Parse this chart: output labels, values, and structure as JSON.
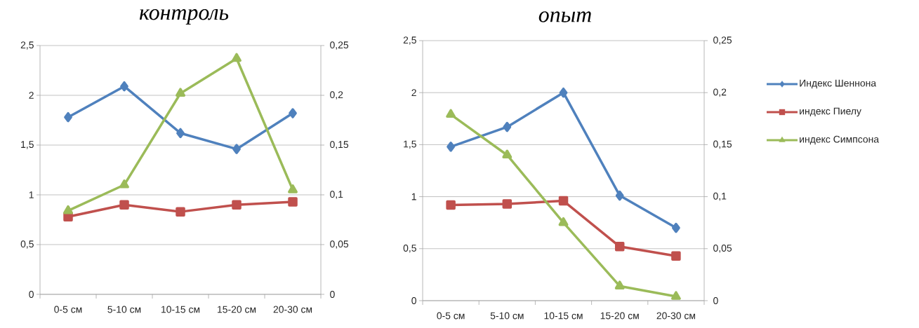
{
  "chart_data": [
    {
      "type": "line",
      "title": "контроль",
      "categories": [
        "0-5 см",
        "5-10 см",
        "10-15 см",
        "15-20 см",
        "20-30 см"
      ],
      "series": [
        {
          "color": "#4f81bd",
          "marker": "diamond",
          "values": [
            1.78,
            2.09,
            1.62,
            1.46,
            1.82
          ]
        },
        {
          "color": "#c0504d",
          "marker": "square",
          "values": [
            0.78,
            0.9,
            0.83,
            0.9,
            0.93
          ]
        },
        {
          "color": "#9bbb59",
          "marker": "triangle",
          "axis": "y2",
          "values": [
            0.084,
            0.11,
            0.202,
            0.237,
            0.105
          ]
        }
      ],
      "ylim": [
        0,
        2.5
      ],
      "yticks": [
        0,
        {
          "value": 0.5,
          "label": "0,5"
        },
        1,
        {
          "value": 1.5,
          "label": "1,5"
        },
        2,
        {
          "value": 2.5,
          "label": "2,5"
        }
      ],
      "y2lim": [
        0,
        0.25
      ],
      "y2ticks": [
        0,
        {
          "value": 0.05,
          "label": "0,05"
        },
        {
          "value": 0.1,
          "label": "0,1"
        },
        {
          "value": 0.15,
          "label": "0,15"
        },
        {
          "value": 0.2,
          "label": "0,2"
        },
        {
          "value": 0.25,
          "label": "0,25"
        }
      ],
      "grid": "y"
    },
    {
      "type": "line",
      "title": "опыт",
      "categories": [
        "0-5 см",
        "5-10 см",
        "10-15 см",
        "15-20 см",
        "20-30 см"
      ],
      "series": [
        {
          "name": "Индекс  Шеннона",
          "color": "#4f81bd",
          "marker": "diamond",
          "values": [
            1.48,
            1.67,
            2.0,
            1.01,
            0.7
          ]
        },
        {
          "name": "индекс Пиелу",
          "color": "#c0504d",
          "marker": "square",
          "values": [
            0.92,
            0.93,
            0.96,
            0.52,
            0.43
          ]
        },
        {
          "name": "индекс Симпсона",
          "color": "#9bbb59",
          "marker": "triangle",
          "axis": "y2",
          "values": [
            0.179,
            0.14,
            0.075,
            0.014,
            0.004
          ]
        }
      ],
      "ylim": [
        0,
        2.5
      ],
      "yticks": [
        0,
        {
          "value": 0.5,
          "label": "0,5"
        },
        1,
        {
          "value": 1.5,
          "label": "1,5"
        },
        2,
        {
          "value": 2.5,
          "label": "2,5"
        }
      ],
      "y2lim": [
        0,
        0.25
      ],
      "y2ticks": [
        0,
        {
          "value": 0.05,
          "label": "0,05"
        },
        {
          "value": 0.1,
          "label": "0,1"
        },
        {
          "value": 0.15,
          "label": "0,15"
        },
        {
          "value": 0.2,
          "label": "0,2"
        },
        {
          "value": 0.25,
          "label": "0,25"
        }
      ],
      "grid": "y",
      "legend": "right"
    }
  ]
}
